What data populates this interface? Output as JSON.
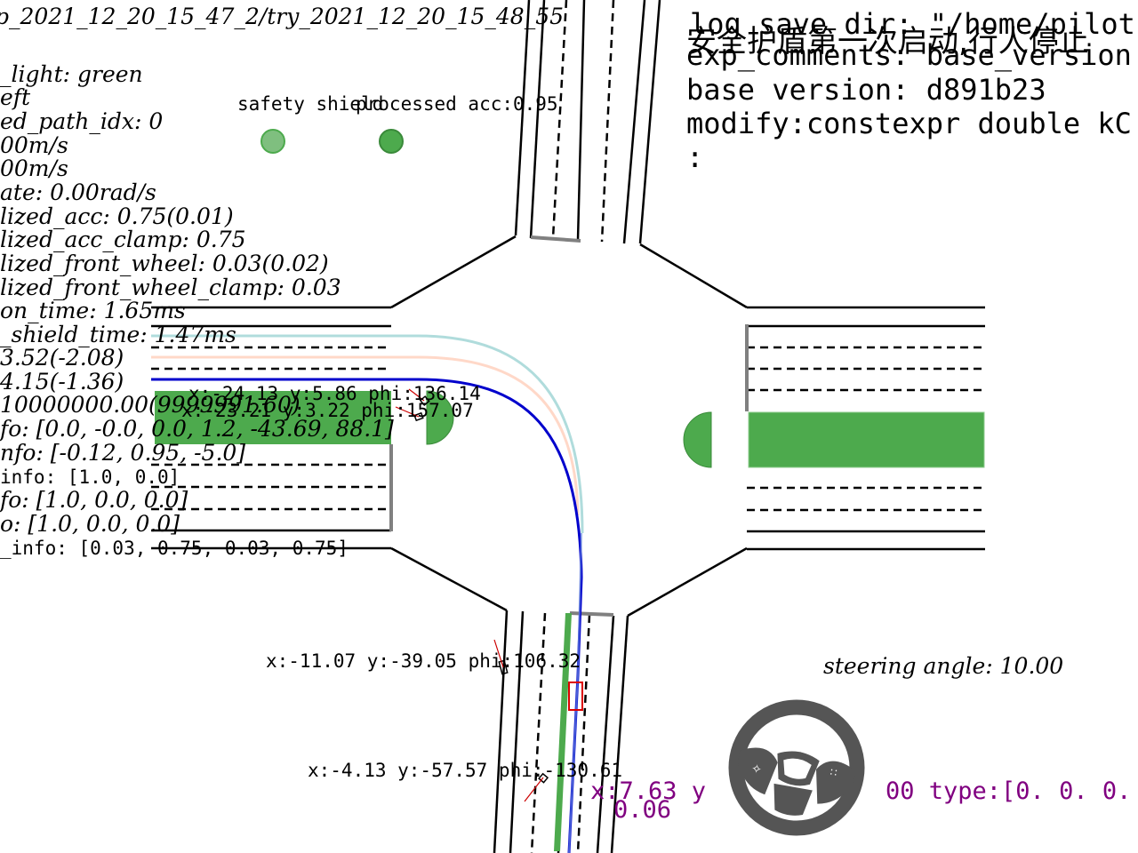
{
  "header": {
    "log_path": "p_2021_12_20_15_47_2/try_2021_12_20_15_48_55",
    "log_save_dir": "log save dir: \"/home/pilot",
    "overlay_chinese": "安全护盾第一次启动,行人停止",
    "exp_comments": "exp_comments: base_version",
    "base_version": "base version: d891b23",
    "modify": "modify:constexpr double kC",
    "colon": ":"
  },
  "status_lines": [
    "_light: green",
    "eft",
    "ed_path_idx: 0",
    "00m/s",
    "00m/s",
    "ate: 0.00rad/s",
    "lized_acc: 0.75(0.01)",
    "lized_acc_clamp: 0.75",
    "lized_front_wheel: 0.03(0.02)",
    "lized_front_wheel_clamp: 0.03",
    "on_time: 1.65ms",
    "_shield_time: 1.47ms",
    "3.52(-2.08)",
    "4.15(-1.36)",
    "10000000.00(9999991.60)",
    "fo: [0.0, -0.0, 0.0, 1.2, -43.69, 88.1]",
    "nfo: [-0.12, 0.95, -5.0]"
  ],
  "info_lines": [
    "info: [1.0, 0.0]",
    "fo: [1.0, 0.0, 0.0]",
    "o: [1.0, 0.0, 0.0]",
    "_info: [0.03, 0.75, 0.03, 0.75]"
  ],
  "indicators": {
    "safety_shield": {
      "label": "safety shield",
      "color": "#7fbf7f"
    },
    "processed_acc": {
      "label": "processed acc:0.95",
      "color": "#4daa4d"
    }
  },
  "agents": [
    {
      "label": "x:-24.13 y:5.86 phi:136.14"
    },
    {
      "label": "x:-23.21 y:3.22 phi:157.07"
    },
    {
      "label": "x:-11.07 y:-39.05 phi:106.32"
    },
    {
      "label": "x:-4.13 y:-57.57 phi:-130.61"
    }
  ],
  "ego": {
    "label": "x:7.63 y",
    "label2": "0.06",
    "type_text": "00 type:[0. 0. 0."
  },
  "steering": {
    "label": "steering angle: 10.00",
    "angle_deg": 10.0
  },
  "colors": {
    "path_blue": "#0000cc",
    "path_teal": "#b0dcdc",
    "path_peach": "#ffd8c8",
    "green_light": "#4daa4d",
    "ego_box": "#dd0000",
    "wheel": "#555555"
  }
}
